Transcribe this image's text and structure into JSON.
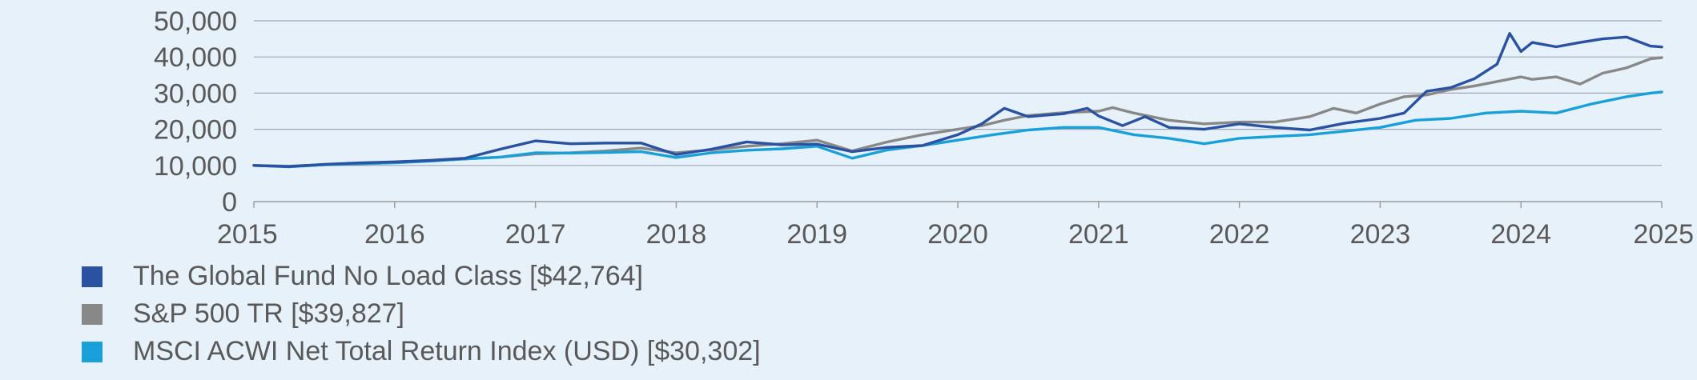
{
  "chart_data": {
    "type": "line",
    "title": "",
    "xlabel": "",
    "ylabel": "",
    "xlim": [
      2015,
      2025
    ],
    "ylim": [
      0,
      50000
    ],
    "x_ticks": [
      "2015",
      "2016",
      "2017",
      "2018",
      "2019",
      "2020",
      "2021",
      "2022",
      "2023",
      "2024",
      "2025"
    ],
    "y_ticks": [
      "0",
      "10,000",
      "20,000",
      "30,000",
      "40,000",
      "50,000"
    ],
    "grid": "horizontal",
    "legend_position": "bottom-left",
    "series": [
      {
        "name": "The Global Fund No Load Class [$42,764]",
        "color": "#2a52a0",
        "points": [
          [
            2015.0,
            10000
          ],
          [
            2015.25,
            9700
          ],
          [
            2015.5,
            10300
          ],
          [
            2015.75,
            10700
          ],
          [
            2016.0,
            11000
          ],
          [
            2016.25,
            11400
          ],
          [
            2016.5,
            12000
          ],
          [
            2016.75,
            14500
          ],
          [
            2017.0,
            16800
          ],
          [
            2017.25,
            16000
          ],
          [
            2017.5,
            16200
          ],
          [
            2017.75,
            16200
          ],
          [
            2018.0,
            13000
          ],
          [
            2018.25,
            14500
          ],
          [
            2018.5,
            16500
          ],
          [
            2018.75,
            15700
          ],
          [
            2019.0,
            15900
          ],
          [
            2019.25,
            13800
          ],
          [
            2019.5,
            15000
          ],
          [
            2019.75,
            15500
          ],
          [
            2020.0,
            18500
          ],
          [
            2020.17,
            21500
          ],
          [
            2020.33,
            25800
          ],
          [
            2020.5,
            23500
          ],
          [
            2020.75,
            24300
          ],
          [
            2020.92,
            25800
          ],
          [
            2021.0,
            23700
          ],
          [
            2021.17,
            21000
          ],
          [
            2021.33,
            23500
          ],
          [
            2021.5,
            20500
          ],
          [
            2021.75,
            20000
          ],
          [
            2022.0,
            21500
          ],
          [
            2022.25,
            20500
          ],
          [
            2022.5,
            19800
          ],
          [
            2022.75,
            21700
          ],
          [
            2023.0,
            23000
          ],
          [
            2023.17,
            24500
          ],
          [
            2023.33,
            30500
          ],
          [
            2023.5,
            31500
          ],
          [
            2023.67,
            34000
          ],
          [
            2023.83,
            38000
          ],
          [
            2023.92,
            46500
          ],
          [
            2024.0,
            41500
          ],
          [
            2024.08,
            44000
          ],
          [
            2024.25,
            42800
          ],
          [
            2024.42,
            44000
          ],
          [
            2024.58,
            45000
          ],
          [
            2024.75,
            45500
          ],
          [
            2024.92,
            43000
          ],
          [
            2025.0,
            42764
          ]
        ]
      },
      {
        "name": "S&P 500 TR [$39,827]",
        "color": "#888888",
        "points": [
          [
            2015.0,
            10000
          ],
          [
            2015.25,
            9800
          ],
          [
            2015.5,
            10200
          ],
          [
            2015.75,
            10400
          ],
          [
            2016.0,
            10800
          ],
          [
            2016.25,
            11300
          ],
          [
            2016.5,
            11800
          ],
          [
            2016.75,
            12300
          ],
          [
            2017.0,
            13200
          ],
          [
            2017.25,
            13500
          ],
          [
            2017.5,
            14000
          ],
          [
            2017.75,
            14800
          ],
          [
            2018.0,
            13500
          ],
          [
            2018.25,
            14300
          ],
          [
            2018.5,
            15300
          ],
          [
            2018.75,
            16000
          ],
          [
            2019.0,
            17000
          ],
          [
            2019.25,
            14000
          ],
          [
            2019.5,
            16500
          ],
          [
            2019.75,
            18500
          ],
          [
            2020.0,
            20000
          ],
          [
            2020.17,
            21000
          ],
          [
            2020.33,
            22500
          ],
          [
            2020.5,
            23800
          ],
          [
            2020.75,
            24600
          ],
          [
            2021.0,
            25000
          ],
          [
            2021.1,
            26000
          ],
          [
            2021.25,
            24500
          ],
          [
            2021.5,
            22500
          ],
          [
            2021.75,
            21500
          ],
          [
            2022.0,
            22000
          ],
          [
            2022.25,
            22000
          ],
          [
            2022.5,
            23500
          ],
          [
            2022.67,
            25800
          ],
          [
            2022.83,
            24500
          ],
          [
            2023.0,
            27000
          ],
          [
            2023.17,
            29000
          ],
          [
            2023.33,
            29500
          ],
          [
            2023.5,
            31000
          ],
          [
            2023.67,
            32000
          ],
          [
            2023.83,
            33200
          ],
          [
            2024.0,
            34500
          ],
          [
            2024.08,
            33800
          ],
          [
            2024.25,
            34500
          ],
          [
            2024.42,
            32500
          ],
          [
            2024.58,
            35500
          ],
          [
            2024.75,
            37000
          ],
          [
            2024.92,
            39500
          ],
          [
            2025.0,
            39827
          ]
        ]
      },
      {
        "name": "MSCI ACWI Net Total Return Index  (USD) [$30,302]",
        "color": "#1aa0d8",
        "points": [
          [
            2015.0,
            10000
          ],
          [
            2015.25,
            9600
          ],
          [
            2015.5,
            10200
          ],
          [
            2015.75,
            10500
          ],
          [
            2016.0,
            10700
          ],
          [
            2016.25,
            11200
          ],
          [
            2016.5,
            11800
          ],
          [
            2016.75,
            12300
          ],
          [
            2017.0,
            13500
          ],
          [
            2017.25,
            13400
          ],
          [
            2017.5,
            13600
          ],
          [
            2017.75,
            13800
          ],
          [
            2018.0,
            12200
          ],
          [
            2018.25,
            13500
          ],
          [
            2018.5,
            14200
          ],
          [
            2018.75,
            14600
          ],
          [
            2019.0,
            15300
          ],
          [
            2019.25,
            12000
          ],
          [
            2019.5,
            14300
          ],
          [
            2019.75,
            15500
          ],
          [
            2020.0,
            17000
          ],
          [
            2020.25,
            18500
          ],
          [
            2020.5,
            19800
          ],
          [
            2020.75,
            20500
          ],
          [
            2021.0,
            20500
          ],
          [
            2021.25,
            18500
          ],
          [
            2021.5,
            17500
          ],
          [
            2021.75,
            16000
          ],
          [
            2022.0,
            17500
          ],
          [
            2022.25,
            18000
          ],
          [
            2022.5,
            18500
          ],
          [
            2022.75,
            19500
          ],
          [
            2023.0,
            20500
          ],
          [
            2023.25,
            22500
          ],
          [
            2023.5,
            23000
          ],
          [
            2023.75,
            24500
          ],
          [
            2024.0,
            25000
          ],
          [
            2024.25,
            24500
          ],
          [
            2024.5,
            27000
          ],
          [
            2024.75,
            29000
          ],
          [
            2024.92,
            30000
          ],
          [
            2025.0,
            30302
          ]
        ]
      }
    ]
  }
}
